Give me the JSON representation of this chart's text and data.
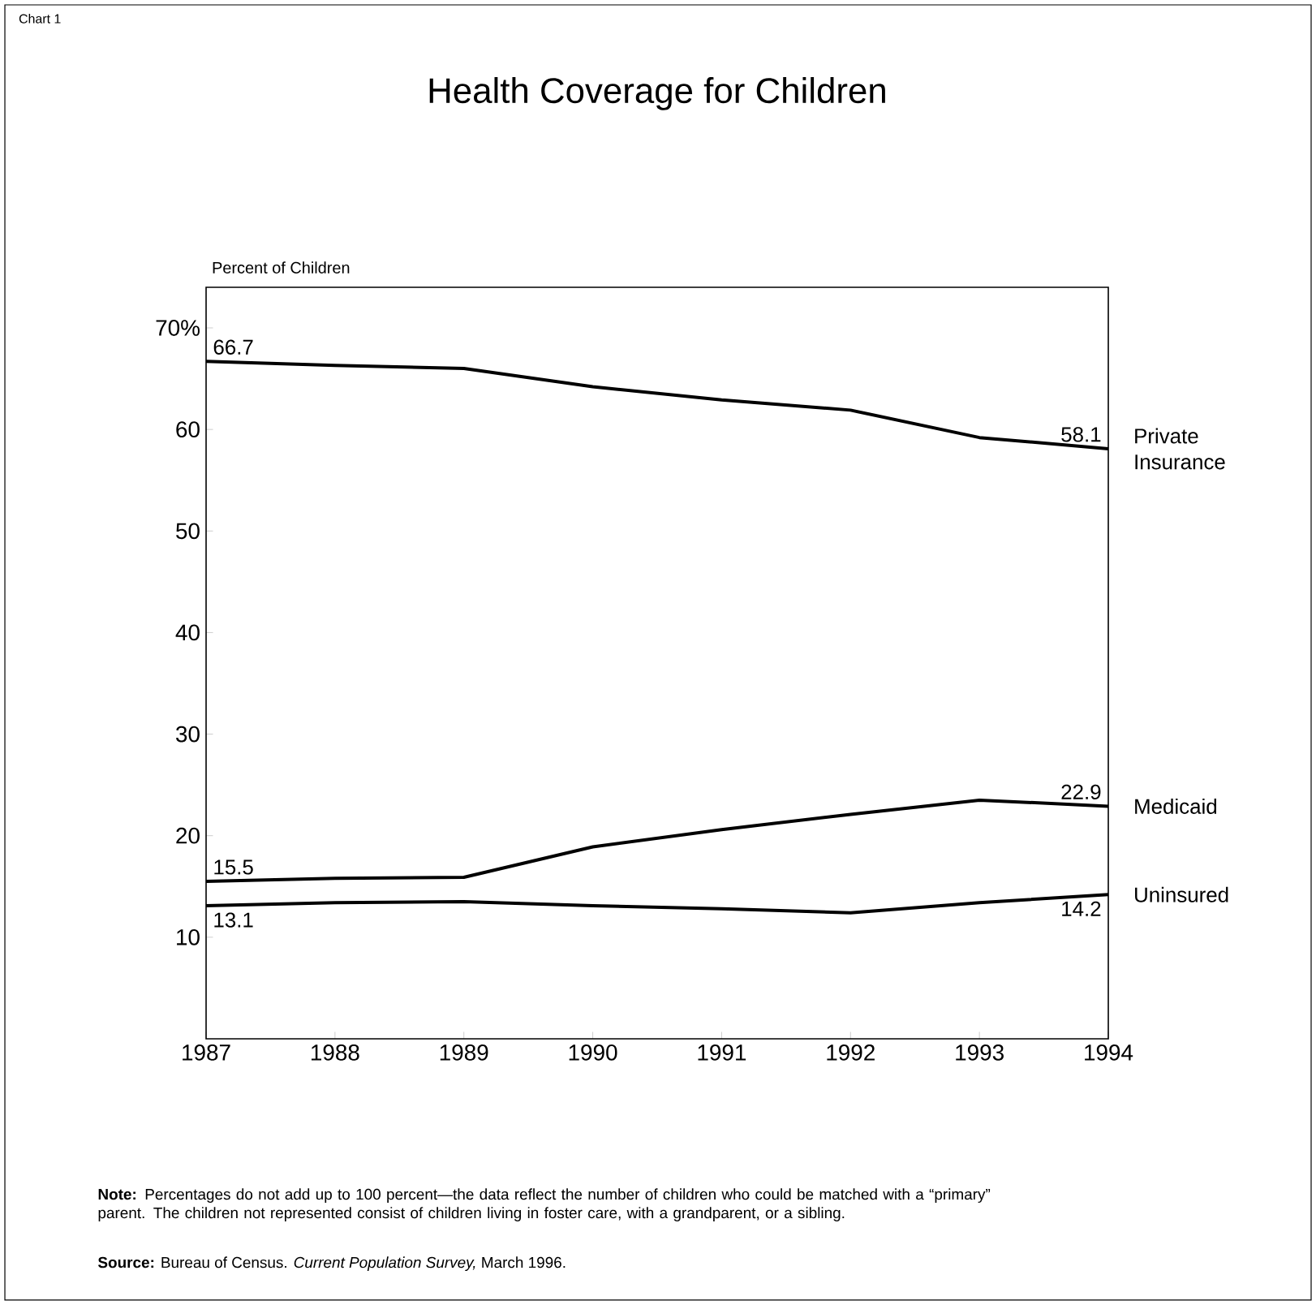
{
  "chart_data": {
    "type": "line",
    "title": "Health Coverage for Children",
    "ylabel": "Percent of Children",
    "x": [
      1987,
      1988,
      1989,
      1990,
      1991,
      1992,
      1993,
      1994
    ],
    "series": [
      {
        "name": "Private Insurance",
        "color": "#000000",
        "values": [
          66.7,
          66.3,
          66.0,
          64.2,
          62.9,
          61.9,
          59.2,
          58.1
        ],
        "value_labels": [
          "66.7",
          null,
          null,
          null,
          null,
          null,
          null,
          "58.1"
        ]
      },
      {
        "name": "Medicaid",
        "color": "#000000",
        "values": [
          15.5,
          15.8,
          15.9,
          18.9,
          20.6,
          22.1,
          23.5,
          22.9
        ],
        "value_labels": [
          "15.5",
          null,
          null,
          null,
          null,
          null,
          null,
          "22.9"
        ]
      },
      {
        "name": "Uninsured",
        "color": "#000000",
        "values": [
          13.1,
          13.4,
          13.5,
          13.1,
          12.8,
          12.4,
          13.4,
          14.2
        ],
        "value_labels": [
          "13.1",
          null,
          null,
          null,
          null,
          null,
          null,
          "14.2"
        ]
      }
    ],
    "xlim": [
      1987,
      1994
    ],
    "ylim": [
      0,
      74
    ],
    "xticks": [
      1987,
      1988,
      1989,
      1990,
      1991,
      1992,
      1993,
      1994
    ],
    "yticks": [
      10,
      20,
      30,
      40,
      50,
      60,
      {
        "value": 70,
        "label": "70%"
      }
    ],
    "grid": false,
    "legend": false,
    "marker": "none",
    "line_style": "solid",
    "annotations": [
      "Chart 1",
      "**Note:** Percentages do not add up to 100 percent—the data reflect the number of children who could be matched with a “primary” parent. The children not represented consist of children living in foster care, with a grandparent, or a sibling.",
      "**Source:** Bureau of Census. *Current Population Survey,* March 1996."
    ]
  }
}
